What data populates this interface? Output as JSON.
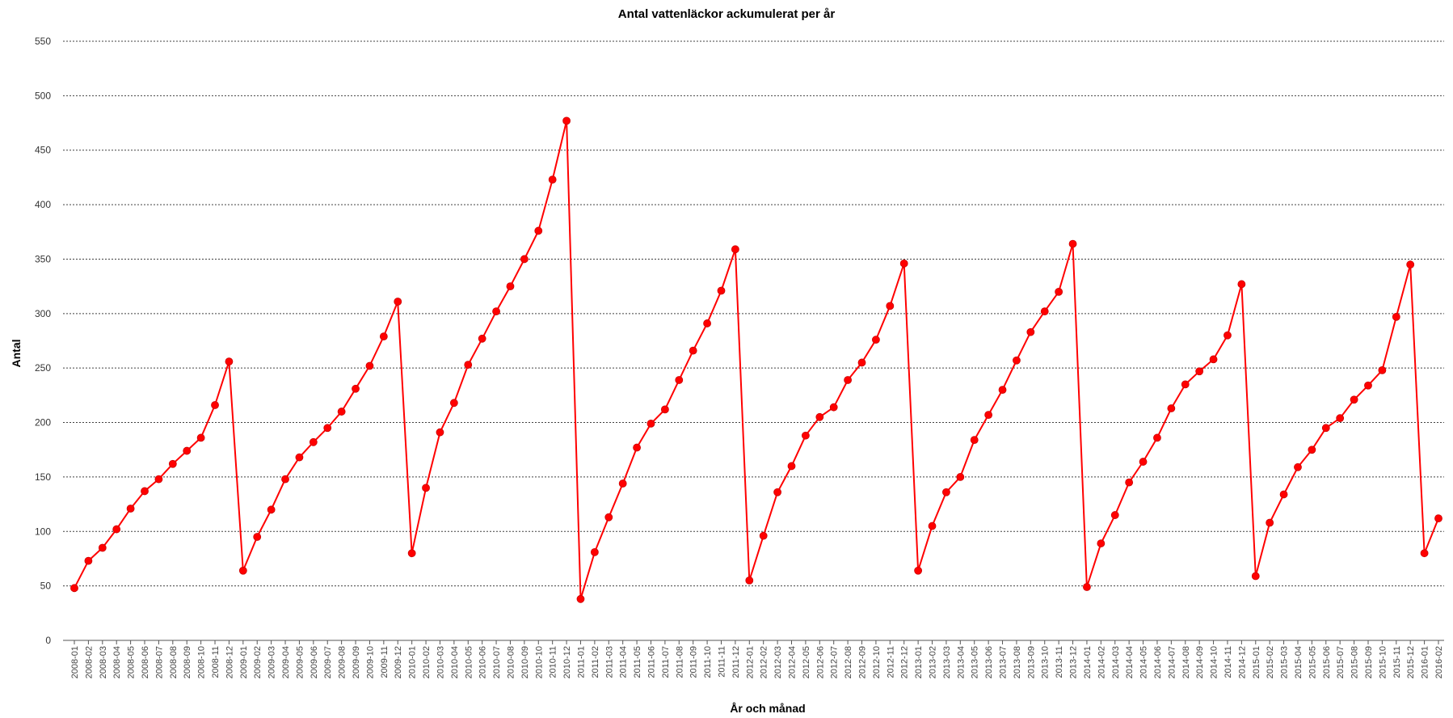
{
  "chart_data": {
    "type": "line",
    "title": "Antal vattenläckor ackumulerat per år",
    "xlabel": "År och månad",
    "ylabel": "Antal",
    "ylim": [
      0,
      550
    ],
    "yticks": [
      0,
      50,
      100,
      150,
      200,
      250,
      300,
      350,
      400,
      450,
      500,
      550
    ],
    "grid": true,
    "legend": "none",
    "colors": {
      "line": "#ff0000",
      "marker": "#ff0000",
      "grid": "#000000"
    },
    "categories": [
      "2008-01",
      "2008-02",
      "2008-03",
      "2008-04",
      "2008-05",
      "2008-06",
      "2008-07",
      "2008-08",
      "2008-09",
      "2008-10",
      "2008-11",
      "2008-12",
      "2009-01",
      "2009-02",
      "2009-03",
      "2009-04",
      "2009-05",
      "2009-06",
      "2009-07",
      "2009-08",
      "2009-09",
      "2009-10",
      "2009-11",
      "2009-12",
      "2010-01",
      "2010-02",
      "2010-03",
      "2010-04",
      "2010-05",
      "2010-06",
      "2010-07",
      "2010-08",
      "2010-09",
      "2010-10",
      "2010-11",
      "2010-12",
      "2011-01",
      "2011-02",
      "2011-03",
      "2011-04",
      "2011-05",
      "2011-06",
      "2011-07",
      "2011-08",
      "2011-09",
      "2011-10",
      "2011-11",
      "2011-12",
      "2012-01",
      "2012-02",
      "2012-03",
      "2012-04",
      "2012-05",
      "2012-06",
      "2012-07",
      "2012-08",
      "2012-09",
      "2012-10",
      "2012-11",
      "2012-12",
      "2013-01",
      "2013-02",
      "2013-03",
      "2013-04",
      "2013-05",
      "2013-06",
      "2013-07",
      "2013-08",
      "2013-09",
      "2013-10",
      "2013-11",
      "2013-12",
      "2014-01",
      "2014-02",
      "2014-03",
      "2014-04",
      "2014-05",
      "2014-06",
      "2014-07",
      "2014-08",
      "2014-09",
      "2014-10",
      "2014-11",
      "2014-12",
      "2015-01",
      "2015-02",
      "2015-03",
      "2015-04",
      "2015-05",
      "2015-06",
      "2015-07",
      "2015-08",
      "2015-09",
      "2015-10",
      "2015-11",
      "2015-12",
      "2016-01",
      "2016-02"
    ],
    "values": [
      48,
      73,
      85,
      102,
      121,
      137,
      148,
      162,
      174,
      186,
      216,
      256,
      64,
      95,
      120,
      148,
      168,
      182,
      195,
      210,
      231,
      252,
      279,
      311,
      80,
      140,
      191,
      218,
      253,
      277,
      302,
      325,
      350,
      376,
      423,
      477,
      38,
      81,
      113,
      144,
      177,
      199,
      212,
      239,
      266,
      291,
      321,
      359,
      55,
      96,
      136,
      160,
      188,
      205,
      214,
      239,
      255,
      276,
      307,
      346,
      64,
      105,
      136,
      150,
      184,
      207,
      230,
      257,
      283,
      302,
      320,
      364,
      49,
      89,
      115,
      145,
      164,
      186,
      213,
      235,
      247,
      258,
      280,
      327,
      59,
      108,
      134,
      159,
      175,
      195,
      204,
      221,
      234,
      248,
      297,
      345,
      80,
      112
    ]
  }
}
